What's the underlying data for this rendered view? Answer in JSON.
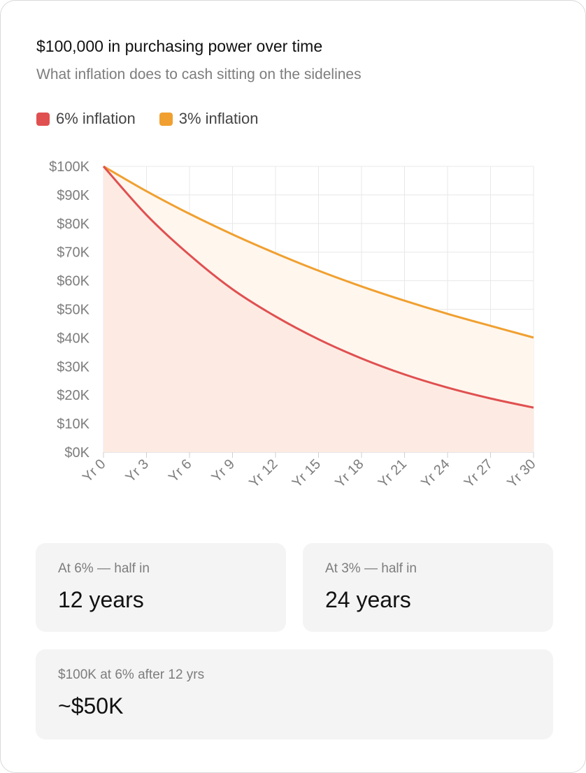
{
  "title": "$100,000 in purchasing power over time",
  "subtitle": "What inflation does to cash sitting on the sidelines",
  "legend": [
    {
      "label": "6% inflation",
      "color": "#e05050"
    },
    {
      "label": "3% inflation",
      "color": "#f0a030"
    }
  ],
  "chart_data": {
    "type": "area",
    "x": [
      "Yr 0",
      "Yr 3",
      "Yr 6",
      "Yr 9",
      "Yr 12",
      "Yr 15",
      "Yr 18",
      "Yr 21",
      "Yr 24",
      "Yr 27",
      "Yr 30"
    ],
    "years": [
      0,
      3,
      6,
      9,
      12,
      15,
      18,
      21,
      24,
      27,
      30
    ],
    "series": [
      {
        "name": "6% inflation",
        "color": "#e05050",
        "fill": "#fdebe3",
        "values": [
          100000,
          83000,
          69000,
          57000,
          47500,
          39500,
          32800,
          27200,
          22600,
          18800,
          15600
        ]
      },
      {
        "name": "3% inflation",
        "color": "#f0a030",
        "fill": "#fff6ee",
        "values": [
          100000,
          91300,
          83400,
          76200,
          69600,
          63500,
          58000,
          53000,
          48400,
          44200,
          40100
        ]
      }
    ],
    "yticks": [
      "$0K",
      "$10K",
      "$20K",
      "$30K",
      "$40K",
      "$50K",
      "$60K",
      "$70K",
      "$80K",
      "$90K",
      "$100K"
    ],
    "ylim": [
      0,
      100000
    ],
    "xlim": [
      0,
      30
    ],
    "grid": true,
    "legend_position": "top-left"
  },
  "stats": [
    {
      "label": "At 6% — half in",
      "value": "12 years"
    },
    {
      "label": "At 3% — half in",
      "value": "24 years"
    },
    {
      "label": "$100K at 6% after 12 yrs",
      "value": "~$50K"
    }
  ]
}
